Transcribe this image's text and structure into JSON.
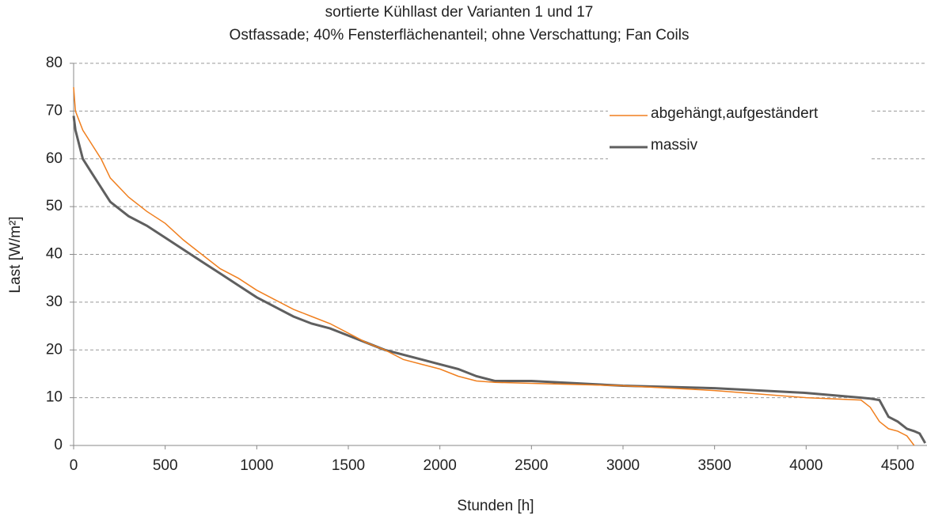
{
  "chart_data": {
    "type": "line",
    "title": "sortierte Kühllast der Varianten 1 und 17",
    "subtitle": "Ostfassade; 40% Fensterflächenanteil; ohne Verschattung; Fan Coils",
    "x_label": "Stunden [h]",
    "y_label": "Last [W/m²]",
    "x": [
      0,
      10,
      50,
      100,
      150,
      200,
      300,
      400,
      500,
      600,
      700,
      800,
      900,
      1000,
      1100,
      1200,
      1300,
      1400,
      1500,
      1600,
      1700,
      1800,
      1900,
      2000,
      2100,
      2200,
      2300,
      2500,
      3000,
      3500,
      4000,
      4300,
      4350,
      4400,
      4450,
      4500,
      4550,
      4590,
      4620,
      4650
    ],
    "series": [
      {
        "name": "abgehängt,aufgeständert",
        "color": "#f07f1e",
        "values": [
          75,
          70,
          66,
          63,
          60,
          56,
          52,
          49,
          46.5,
          43,
          40,
          37,
          35,
          32.5,
          30.5,
          28.5,
          27,
          25.5,
          23.5,
          21.5,
          20,
          18,
          17,
          16,
          14.5,
          13.5,
          13.2,
          13,
          12.5,
          11.5,
          10,
          9.5,
          8,
          5,
          3.5,
          3,
          2,
          0,
          null,
          null
        ]
      },
      {
        "name": "massiv",
        "color": "#5f5f5f",
        "values": [
          69,
          66,
          60,
          57,
          54,
          51,
          48,
          46,
          43.5,
          41,
          38.5,
          36,
          33.5,
          31,
          29,
          27,
          25.5,
          24.5,
          23,
          21.5,
          20,
          19,
          18,
          17,
          16,
          14.5,
          13.5,
          13.5,
          12.5,
          12,
          11,
          10,
          9.8,
          9.5,
          6,
          5,
          3.5,
          3,
          2.5,
          0.5
        ]
      }
    ],
    "xlim": [
      0,
      4660
    ],
    "xticks": [
      0,
      500,
      1000,
      1500,
      2000,
      2500,
      3000,
      3500,
      4000,
      4500
    ],
    "ylim": [
      0,
      80
    ],
    "yticks": [
      0,
      10,
      20,
      30,
      40,
      50,
      60,
      70,
      80
    ],
    "grid": true,
    "legend": "upper right"
  }
}
